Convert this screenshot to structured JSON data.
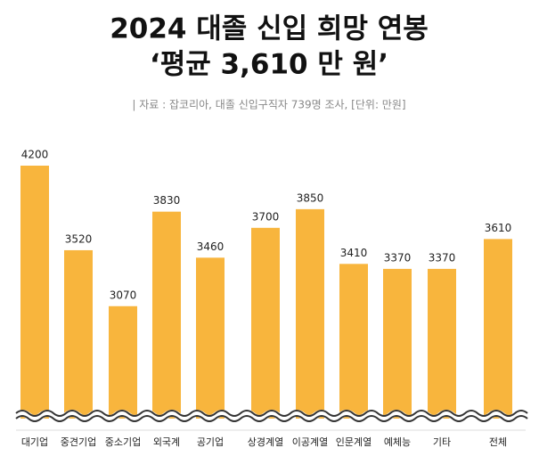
{
  "chart_data": {
    "type": "bar",
    "title": "2024 대졸 신입 희망 연봉",
    "subtitle": "‘평균 3,610 만 원’",
    "source": "| 자료 : 잡코리아, 대졸 신입구직자 739명 조사, [단위: 만원]",
    "categories": [
      "대기업",
      "중견기업",
      "중소기업",
      "외국계",
      "공기업",
      "상경계열",
      "이공계열",
      "인문계열",
      "예체능",
      "기타",
      "전체"
    ],
    "values": [
      4200,
      3520,
      3070,
      3830,
      3460,
      3700,
      3850,
      3410,
      3370,
      3370,
      3610
    ],
    "color": "#f8b53d"
  }
}
